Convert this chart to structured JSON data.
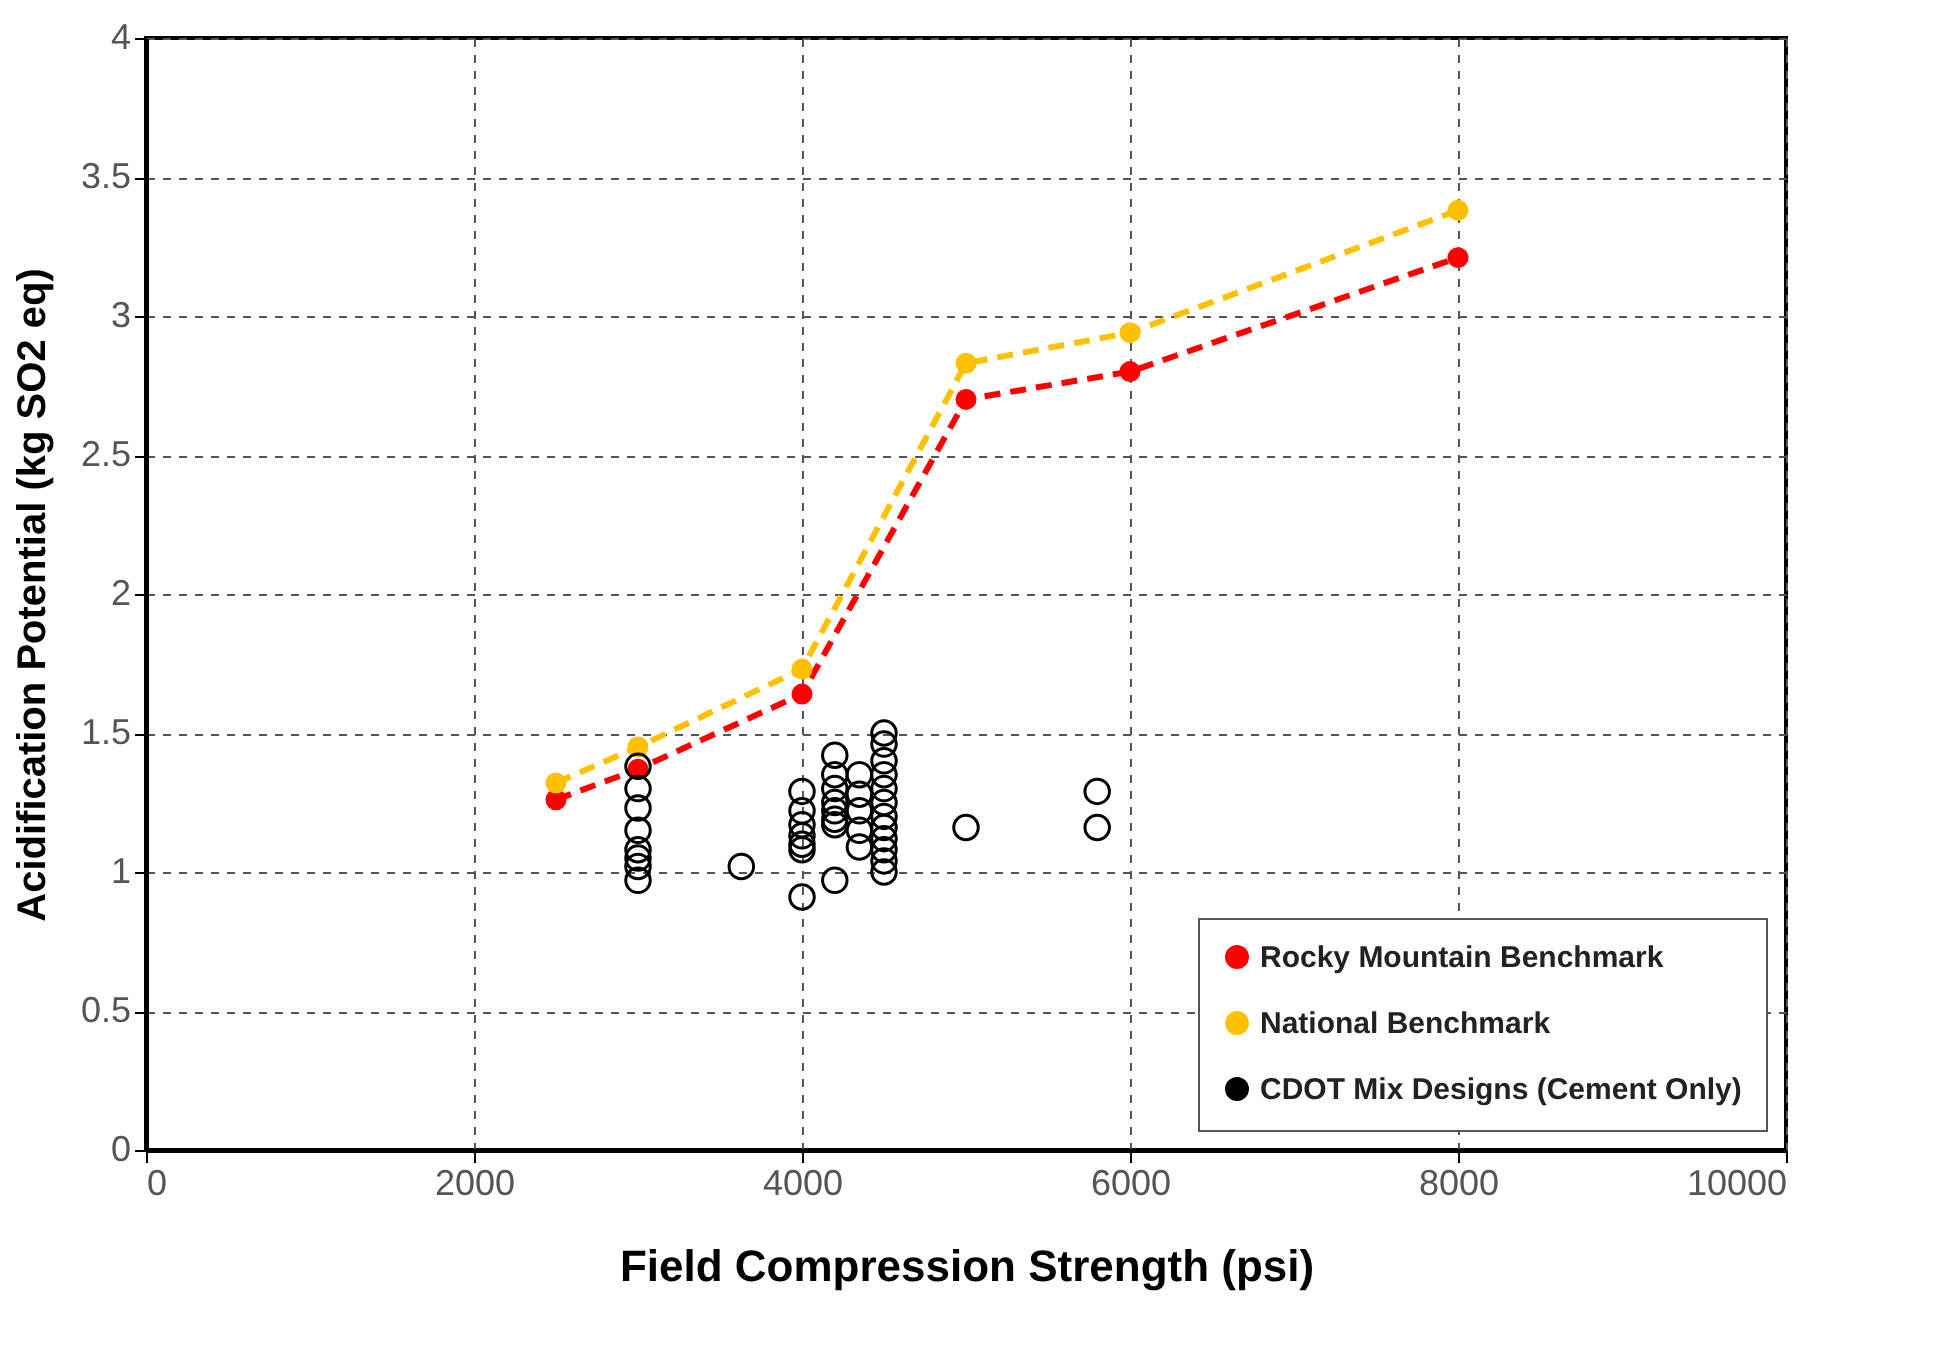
{
  "chart_data": {
    "type": "scatter",
    "xlabel": "Field Compression Strength (psi)",
    "ylabel": "Acidification Potential (kg SO2 eq)",
    "xlim": [
      0,
      10000
    ],
    "xticks": [
      0,
      2000,
      4000,
      6000,
      8000,
      10000
    ],
    "ylim": [
      0,
      4
    ],
    "yticks": [
      0,
      0.5,
      1,
      1.5,
      2,
      2.5,
      3,
      3.5,
      4
    ],
    "grid": true,
    "legend": "bottom right",
    "series": [
      {
        "type": "line",
        "name": "Rocky Mountain Benchmark",
        "color": "#ff0000",
        "marker": "circle",
        "line_style": "dashed",
        "x": [
          2500,
          3000,
          4000,
          5000,
          6000,
          8000
        ],
        "values": [
          1.26,
          1.37,
          1.64,
          2.7,
          2.8,
          3.21
        ]
      },
      {
        "type": "line",
        "name": "National Benchmark",
        "color": "#ffc000",
        "marker": "circle",
        "line_style": "dashed",
        "x": [
          2500,
          3000,
          4000,
          5000,
          6000,
          8000
        ],
        "values": [
          1.32,
          1.45,
          1.73,
          2.83,
          2.94,
          3.38
        ]
      },
      {
        "name": "CDOT Mix Designs (Cement Only)",
        "color": "#000000",
        "marker": "circle",
        "x": [
          3000,
          3000,
          3000,
          3000,
          3000,
          3000,
          3000,
          3000,
          3630,
          4000,
          4000,
          4000,
          4000,
          4000,
          4000,
          4000,
          4200,
          4200,
          4200,
          4200,
          4200,
          4200,
          4200,
          4200,
          4350,
          4350,
          4350,
          4350,
          4350,
          4500,
          4500,
          4500,
          4500,
          4500,
          4500,
          4500,
          4500,
          4500,
          4500,
          4500,
          4500,
          5000,
          5800,
          5800
        ],
        "values": [
          1.38,
          1.3,
          1.23,
          1.15,
          1.08,
          1.05,
          1.02,
          0.97,
          1.02,
          1.29,
          1.22,
          1.17,
          1.13,
          1.1,
          1.08,
          0.91,
          1.42,
          1.35,
          1.3,
          1.25,
          1.22,
          1.19,
          1.17,
          0.97,
          1.35,
          1.28,
          1.22,
          1.15,
          1.09,
          1.5,
          1.46,
          1.4,
          1.35,
          1.3,
          1.25,
          1.2,
          1.16,
          1.12,
          1.08,
          1.04,
          1.0,
          1.16,
          1.29,
          1.16
        ]
      }
    ]
  }
}
